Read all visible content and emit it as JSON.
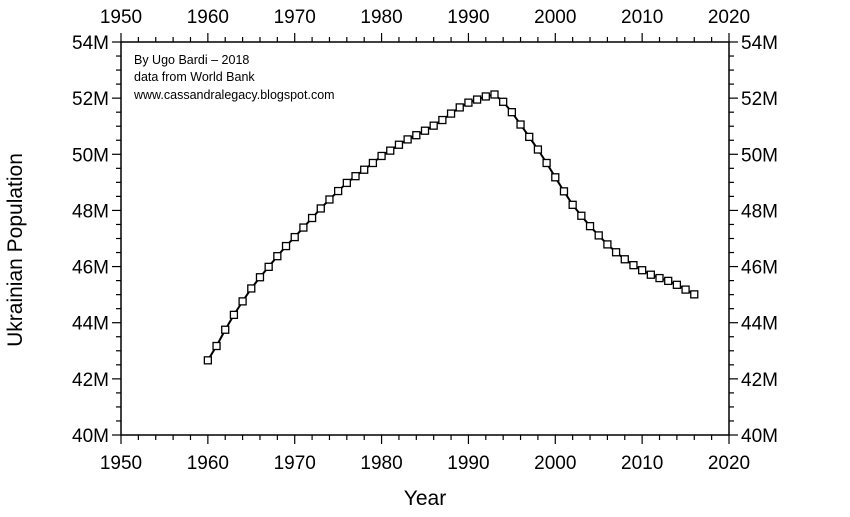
{
  "chart_data": {
    "type": "line",
    "title": "",
    "xlabel": "Year",
    "ylabel": "Ukrainian Population",
    "xlim": [
      1950,
      2020
    ],
    "ylim": [
      40,
      54
    ],
    "x_ticks": [
      1950,
      1960,
      1970,
      1980,
      1990,
      2000,
      2010,
      2020
    ],
    "x_tick_labels": [
      "1950",
      "1960",
      "1970",
      "1980",
      "1990",
      "2000",
      "2010",
      "2020"
    ],
    "y_ticks": [
      40,
      42,
      44,
      46,
      48,
      50,
      52,
      54
    ],
    "y_tick_labels": [
      "40M",
      "42M",
      "44M",
      "46M",
      "48M",
      "50M",
      "52M",
      "54M"
    ],
    "annotations": [
      "By Ugo Bardi – 2018",
      "data from World Bank",
      "www.cassandralegacy.blogspot.com"
    ],
    "grid": false,
    "marker": "square",
    "series": [
      {
        "x": [
          1960,
          1961,
          1962,
          1963,
          1964,
          1965,
          1966,
          1967,
          1968,
          1969,
          1970,
          1971,
          1972,
          1973,
          1974,
          1975,
          1976,
          1977,
          1978,
          1979,
          1980,
          1981,
          1982,
          1983,
          1984,
          1985,
          1986,
          1987,
          1988,
          1989,
          1990,
          1991,
          1992,
          1993,
          1994,
          1995,
          1996,
          1997,
          1998,
          1999,
          2000,
          2001,
          2002,
          2003,
          2004,
          2005,
          2006,
          2007,
          2008,
          2009,
          2010,
          2011,
          2012,
          2013,
          2014,
          2015,
          2016
        ],
        "y": [
          42.66,
          43.17,
          43.75,
          44.28,
          44.76,
          45.22,
          45.62,
          45.99,
          46.37,
          46.73,
          47.05,
          47.39,
          47.73,
          48.07,
          48.39,
          48.69,
          48.98,
          49.22,
          49.45,
          49.69,
          49.94,
          50.13,
          50.34,
          50.53,
          50.68,
          50.84,
          51.02,
          51.22,
          51.45,
          51.67,
          51.84,
          51.95,
          52.06,
          52.13,
          51.87,
          51.5,
          51.06,
          50.62,
          50.17,
          49.69,
          49.18,
          48.68,
          48.2,
          47.81,
          47.44,
          47.11,
          46.79,
          46.51,
          46.26,
          46.05,
          45.87,
          45.71,
          45.59,
          45.49,
          45.35,
          45.18,
          45.01
        ]
      }
    ]
  }
}
